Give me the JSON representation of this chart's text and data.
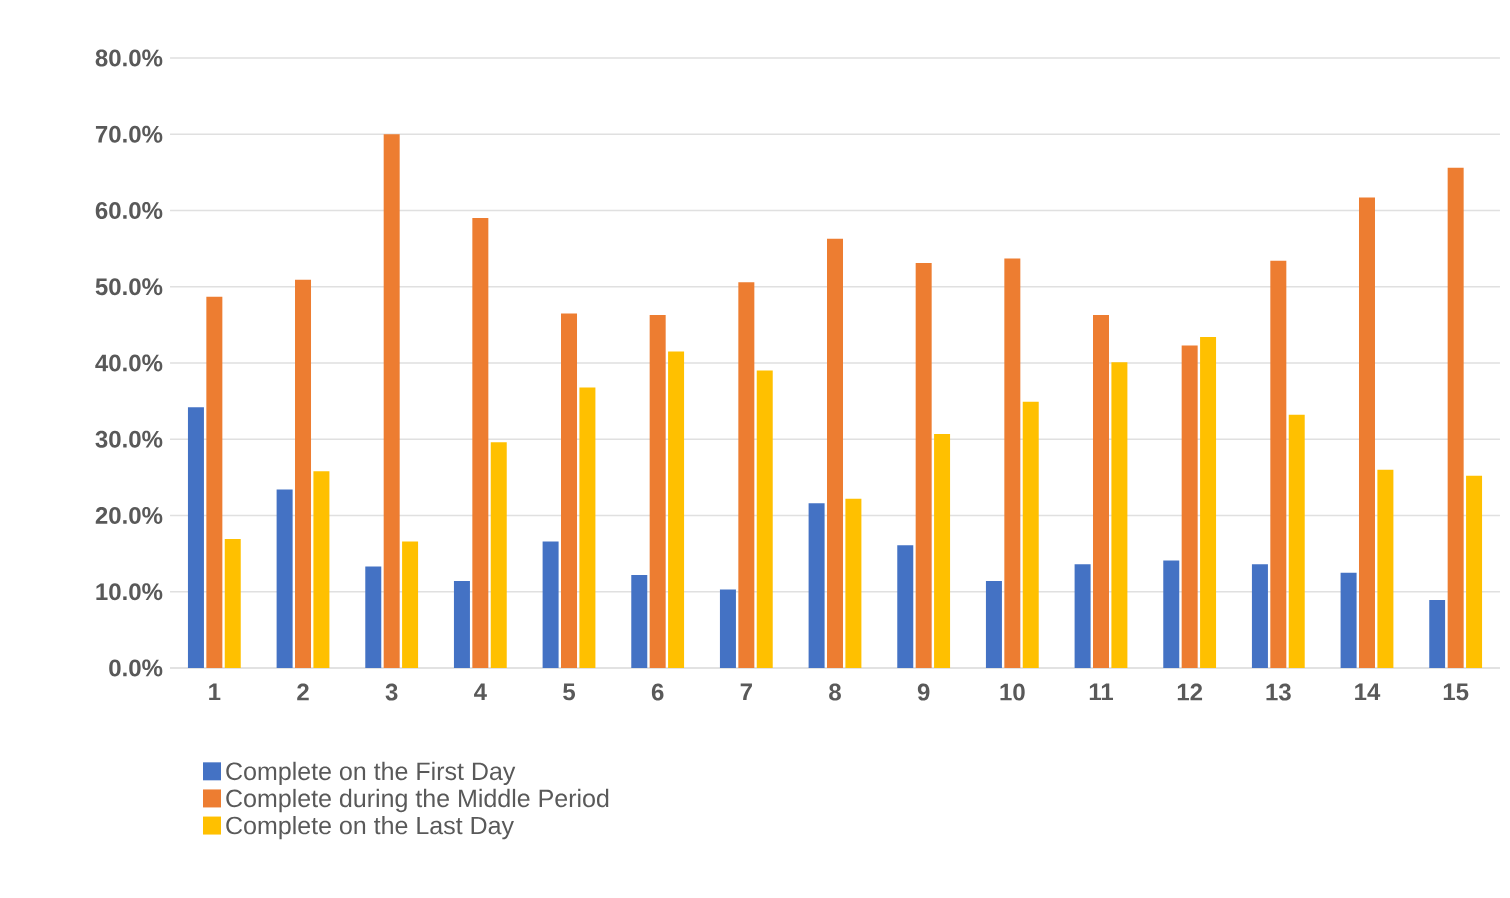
{
  "chart_data": {
    "type": "bar",
    "categories": [
      "1",
      "2",
      "3",
      "4",
      "5",
      "6",
      "7",
      "8",
      "9",
      "10",
      "11",
      "12",
      "13",
      "14",
      "15"
    ],
    "series": [
      {
        "name": "Complete on the First Day",
        "color": "#4472c4",
        "values": [
          34.2,
          23.4,
          13.3,
          11.4,
          16.6,
          12.2,
          10.3,
          21.6,
          16.1,
          11.4,
          13.6,
          14.1,
          13.6,
          12.5,
          8.9
        ]
      },
      {
        "name": "Complete during the Middle Period",
        "color": "#ed7d31",
        "values": [
          48.7,
          50.9,
          70.0,
          59.0,
          46.5,
          46.3,
          50.6,
          56.3,
          53.1,
          53.7,
          46.3,
          42.3,
          53.4,
          61.7,
          65.6
        ]
      },
      {
        "name": "Complete on the Last Day",
        "color": "#ffc000",
        "values": [
          16.9,
          25.8,
          16.6,
          29.6,
          36.8,
          41.5,
          39.0,
          22.2,
          30.7,
          34.9,
          40.1,
          43.4,
          33.2,
          26.0,
          25.2
        ]
      }
    ],
    "ylim": [
      0,
      80
    ],
    "yticks": [
      {
        "value": 0,
        "label": "0.0%"
      },
      {
        "value": 10,
        "label": "10.0%"
      },
      {
        "value": 20,
        "label": "20.0%"
      },
      {
        "value": 30,
        "label": "30.0%"
      },
      {
        "value": 40,
        "label": "40.0%"
      },
      {
        "value": 50,
        "label": "50.0%"
      },
      {
        "value": 60,
        "label": "60.0%"
      },
      {
        "value": 70,
        "label": "70.0%"
      },
      {
        "value": 80,
        "label": "80.0%"
      }
    ],
    "grid": "y",
    "legend": "bottom"
  }
}
